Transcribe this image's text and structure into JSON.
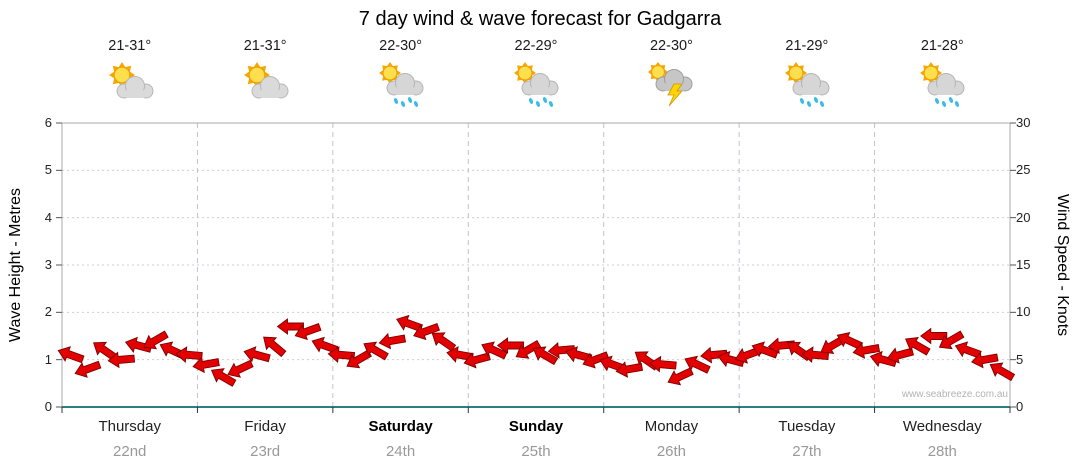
{
  "title": "7 day wind & wave forecast for Gadgarra",
  "watermark": "www.seabreeze.com.au",
  "days": [
    {
      "name": "Thursday",
      "date": "22nd",
      "temp": "21-31°",
      "icon": "partly-cloudy",
      "bold": false
    },
    {
      "name": "Friday",
      "date": "23rd",
      "temp": "21-31°",
      "icon": "partly-cloudy",
      "bold": false
    },
    {
      "name": "Saturday",
      "date": "24th",
      "temp": "22-30°",
      "icon": "sun-showers",
      "bold": true
    },
    {
      "name": "Sunday",
      "date": "25th",
      "temp": "22-29°",
      "icon": "sun-showers",
      "bold": true
    },
    {
      "name": "Monday",
      "date": "26th",
      "temp": "22-30°",
      "icon": "thunderstorm",
      "bold": false
    },
    {
      "name": "Tuesday",
      "date": "27th",
      "temp": "21-29°",
      "icon": "sun-showers",
      "bold": false
    },
    {
      "name": "Wednesday",
      "date": "28th",
      "temp": "21-28°",
      "icon": "sun-showers",
      "bold": false
    }
  ],
  "left_axis": {
    "label": "Wave Height - Metres",
    "min": 0,
    "max": 6,
    "step": 1
  },
  "right_axis": {
    "label": "Wind Speed - Knots",
    "min": 0,
    "max": 30,
    "step": 5
  },
  "colors": {
    "arrow": "#e30000",
    "arrow_stroke": "#7e0000",
    "baseline": "#2a7f7f"
  },
  "chart_data": {
    "type": "line",
    "title": "7 day wind & wave forecast for Gadgarra",
    "categories": [
      "Thursday 22nd",
      "Friday 23rd",
      "Saturday 24th",
      "Sunday 25th",
      "Monday 26th",
      "Tuesday 27th",
      "Wednesday 28th"
    ],
    "samples_per_day": 8,
    "y_left": {
      "label": "Wave Height - Metres",
      "range": [
        0,
        6
      ]
    },
    "y_right": {
      "label": "Wind Speed - Knots",
      "range": [
        0,
        30
      ]
    },
    "grid": true,
    "legend": "none",
    "series": [
      {
        "name": "Wind speed",
        "unit": "knots",
        "marker": "red-wind-arrow",
        "values": [
          5.5,
          4.0,
          6.0,
          5.0,
          6.5,
          7.0,
          6.0,
          5.5,
          4.5,
          3.2,
          4.0,
          5.5,
          6.5,
          8.5,
          8.0,
          6.5,
          5.5,
          5.0,
          6.0,
          7.0,
          8.8,
          8.0,
          7.0,
          5.5,
          5.0,
          6.0,
          6.5,
          6.0,
          5.5,
          6.0,
          5.5,
          5.0,
          4.5,
          4.0,
          5.0,
          4.5,
          3.2,
          4.5,
          5.5,
          5.0,
          5.5,
          6.0,
          6.5,
          6.0,
          5.5,
          6.5,
          7.0,
          6.0,
          5.0,
          5.5,
          6.5,
          7.5,
          7.0,
          6.0,
          5.0,
          3.8
        ],
        "directions_deg": [
          200,
          160,
          215,
          175,
          195,
          150,
          205,
          185,
          170,
          210,
          155,
          195,
          220,
          180,
          160,
          200,
          185,
          150,
          210,
          170,
          200,
          160,
          215,
          190,
          165,
          205,
          180,
          150,
          210,
          175,
          195,
          160,
          200,
          170,
          215,
          185,
          155,
          205,
          175,
          195,
          160,
          200,
          175,
          215,
          185,
          150,
          205,
          170,
          195,
          165,
          210,
          180,
          150,
          200,
          170,
          210
        ]
      }
    ]
  }
}
